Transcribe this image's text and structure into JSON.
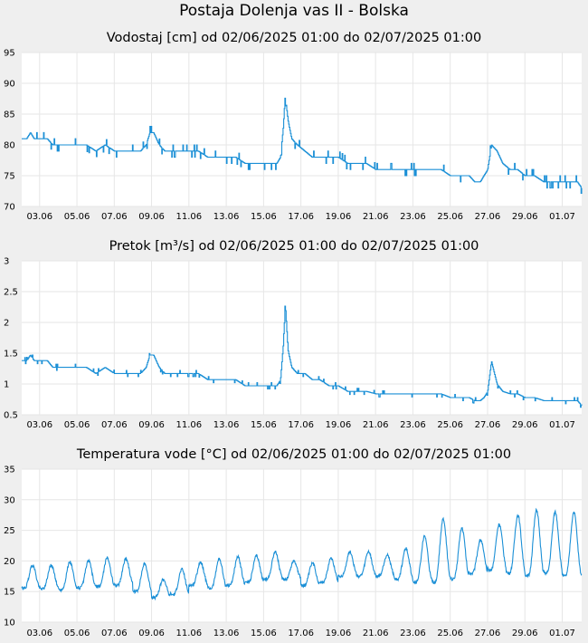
{
  "page": {
    "title": "Postaja Dolenja vas II - Bolska"
  },
  "chart_data": [
    {
      "type": "line",
      "title": "Vodostaj [cm] od 02/06/2025 01:00 do 02/07/2025 01:00",
      "ylabel": "Vodostaj [cm]",
      "ylim": [
        70,
        95
      ],
      "yticks": [
        70,
        75,
        80,
        85,
        90,
        95
      ],
      "ytick_labels": [
        "70",
        "75",
        "80",
        "85",
        "90",
        "95"
      ],
      "xlim": [
        2.0417,
        32.0417
      ],
      "xticks": [
        3,
        5,
        7,
        9,
        11,
        13,
        15,
        17,
        19,
        21,
        23,
        25,
        27,
        29,
        31
      ],
      "xtick_labels": [
        "03.06",
        "05.06",
        "07.06",
        "09.06",
        "11.06",
        "13.06",
        "15.06",
        "17.06",
        "19.06",
        "21.06",
        "23.06",
        "25.06",
        "27.06",
        "29.06",
        "01.07"
      ],
      "grid": true,
      "color": "#1a8fd6",
      "step": 1,
      "series": [
        {
          "name": "Vodostaj",
          "x": [
            2.04,
            2.3,
            2.5,
            2.7,
            3,
            3.4,
            3.7,
            4,
            4.5,
            5,
            5.5,
            6,
            6.5,
            7,
            7.5,
            8,
            8.4,
            8.7,
            8.9,
            9.1,
            9.4,
            9.7,
            10,
            10.5,
            11,
            11.5,
            12,
            12.5,
            13,
            13.5,
            14,
            14.5,
            15,
            15.4,
            15.7,
            15.9,
            16.05,
            16.15,
            16.3,
            16.5,
            16.8,
            17.2,
            17.6,
            18,
            18.5,
            19,
            19.5,
            20,
            20.5,
            21,
            21.5,
            22,
            22.5,
            23,
            23.5,
            24,
            24.5,
            25,
            25.5,
            26,
            26.3,
            26.6,
            26.8,
            27.0,
            27.2,
            27.5,
            27.8,
            28.2,
            28.6,
            29,
            29.5,
            30,
            30.5,
            31,
            31.5,
            31.8,
            32.04
          ],
          "y": [
            81,
            81,
            82,
            81,
            81,
            81,
            80,
            80,
            80,
            80,
            80,
            79,
            80,
            79,
            79,
            79,
            79,
            80,
            82,
            82,
            80,
            79,
            79,
            79,
            79,
            79,
            78,
            78,
            78,
            78,
            77,
            77,
            77,
            77,
            77,
            78,
            83,
            88,
            84,
            81,
            80,
            79,
            78,
            78,
            78,
            78,
            77,
            77,
            77,
            76,
            76,
            76,
            76,
            76,
            76,
            76,
            76,
            75,
            75,
            75,
            74,
            74,
            75,
            76,
            80,
            79,
            77,
            76,
            76,
            75,
            75,
            74,
            74,
            74,
            74,
            74,
            73
          ]
        }
      ]
    },
    {
      "type": "line",
      "title": "Pretok [m³/s] od 02/06/2025 01:00 do 02/07/2025 01:00",
      "ylabel": "Pretok [m³/s]",
      "ylim": [
        0.5,
        3
      ],
      "yticks": [
        0.5,
        1,
        1.5,
        2,
        2.5,
        3
      ],
      "ytick_labels": [
        "0.5",
        "1",
        "1.5",
        "2",
        "2.5",
        "3"
      ],
      "xlim": [
        2.0417,
        32.0417
      ],
      "xticks": [
        3,
        5,
        7,
        9,
        11,
        13,
        15,
        17,
        19,
        21,
        23,
        25,
        27,
        29,
        31
      ],
      "xtick_labels": [
        "03.06",
        "05.06",
        "07.06",
        "09.06",
        "11.06",
        "13.06",
        "15.06",
        "17.06",
        "19.06",
        "21.06",
        "23.06",
        "25.06",
        "27.06",
        "29.06",
        "01.07"
      ],
      "grid": true,
      "color": "#1a8fd6",
      "step": 0.05,
      "series": [
        {
          "name": "Pretok",
          "x": [
            2.04,
            2.3,
            2.5,
            2.7,
            3,
            3.4,
            3.7,
            4,
            4.5,
            5,
            5.5,
            6,
            6.5,
            7,
            7.5,
            8,
            8.4,
            8.7,
            8.9,
            9.1,
            9.4,
            9.7,
            10,
            10.5,
            11,
            11.5,
            12,
            12.5,
            13,
            13.5,
            14,
            14.5,
            15,
            15.4,
            15.7,
            15.9,
            16.05,
            16.15,
            16.3,
            16.5,
            16.8,
            17.2,
            17.6,
            18,
            18.5,
            19,
            19.5,
            20,
            20.5,
            21,
            21.5,
            22,
            22.5,
            23,
            23.5,
            24,
            24.5,
            25,
            25.5,
            26,
            26.3,
            26.6,
            26.8,
            27.0,
            27.2,
            27.5,
            27.8,
            28.2,
            28.6,
            29,
            29.5,
            30,
            30.5,
            31,
            31.5,
            31.8,
            32.04
          ],
          "y": [
            1.38,
            1.38,
            1.47,
            1.38,
            1.38,
            1.38,
            1.27,
            1.27,
            1.27,
            1.27,
            1.27,
            1.17,
            1.27,
            1.17,
            1.17,
            1.17,
            1.17,
            1.27,
            1.47,
            1.47,
            1.27,
            1.17,
            1.17,
            1.17,
            1.17,
            1.17,
            1.07,
            1.07,
            1.07,
            1.07,
            0.97,
            0.97,
            0.97,
            0.97,
            0.97,
            1.07,
            1.65,
            2.32,
            1.55,
            1.27,
            1.17,
            1.17,
            1.07,
            1.07,
            0.97,
            0.97,
            0.88,
            0.88,
            0.88,
            0.84,
            0.84,
            0.84,
            0.84,
            0.84,
            0.84,
            0.84,
            0.84,
            0.78,
            0.78,
            0.78,
            0.73,
            0.73,
            0.78,
            0.88,
            1.37,
            1.0,
            0.88,
            0.84,
            0.84,
            0.78,
            0.78,
            0.73,
            0.73,
            0.73,
            0.73,
            0.73,
            0.65
          ]
        }
      ]
    },
    {
      "type": "line",
      "title": "Temperatura vode [°C] od 02/06/2025 01:00 do 02/07/2025 01:00",
      "ylabel": "Temperatura vode [°C]",
      "ylim": [
        10,
        35
      ],
      "yticks": [
        10,
        15,
        20,
        25,
        30,
        35
      ],
      "ytick_labels": [
        "10",
        "15",
        "20",
        "25",
        "30",
        "35"
      ],
      "xlim": [
        2.0417,
        32.0417
      ],
      "xticks": [
        3,
        5,
        7,
        9,
        11,
        13,
        15,
        17,
        19,
        21,
        23,
        25,
        27,
        29,
        31
      ],
      "xtick_labels": [
        "03.06",
        "05.06",
        "07.06",
        "09.06",
        "11.06",
        "13.06",
        "15.06",
        "17.06",
        "19.06",
        "21.06",
        "23.06",
        "25.06",
        "27.06",
        "29.06",
        "01.07"
      ],
      "grid": true,
      "color": "#1a8fd6",
      "step": 0,
      "daily_min": [
        15.5,
        15.5,
        15.3,
        15.6,
        15.8,
        16.0,
        15.0,
        14.0,
        14.5,
        16.0,
        15.5,
        16.0,
        16.5,
        17.0,
        17.0,
        16.0,
        16.5,
        17.5,
        17.5,
        17.5,
        17.0,
        16.5,
        16.5,
        17.0,
        18.0,
        18.5,
        18.0,
        17.5,
        18.0,
        17.5,
        17.5
      ],
      "daily_max": [
        19.3,
        19.3,
        19.8,
        20.0,
        20.5,
        20.4,
        19.5,
        17.0,
        18.6,
        19.8,
        20.3,
        20.6,
        20.8,
        21.5,
        20.0,
        19.6,
        20.5,
        21.5,
        21.5,
        21.0,
        22.0,
        24.0,
        26.8,
        25.4,
        23.5,
        26.0,
        27.5,
        28.3,
        28.0,
        28.0,
        28.0
      ]
    }
  ]
}
